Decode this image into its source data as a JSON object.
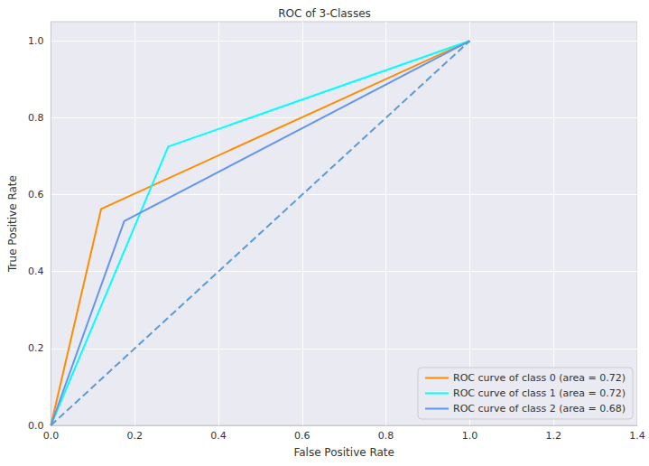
{
  "chart_data": {
    "type": "line",
    "title": "ROC of 3-Classes",
    "x_label": "False Positive Rate",
    "y_label": "True Positive Rate",
    "series": [
      {
        "name": "ROC curve of class 0 (area = 0.72)",
        "color": "#ff8c00",
        "x": [
          0,
          0.12,
          1
        ],
        "values": [
          0,
          0.563,
          1
        ],
        "line_style": "solid"
      },
      {
        "name": "ROC curve of class 1 (area = 0.72)",
        "color": "#00ffff",
        "x": [
          0,
          0.28,
          1
        ],
        "values": [
          0,
          0.725,
          1
        ],
        "line_style": "solid"
      },
      {
        "name": "ROC curve of class 2 (area = 0.68)",
        "color": "#6495ed",
        "x": [
          0,
          0.175,
          1
        ],
        "values": [
          0,
          0.531,
          1
        ],
        "line_style": "solid"
      },
      {
        "color": "#5b9bd5",
        "x": [
          0,
          1
        ],
        "values": [
          0,
          1
        ],
        "line_style": "dashed"
      }
    ],
    "xlim": [
      0,
      1.4
    ],
    "xticks": [
      {
        "value": 0,
        "label": "0.0"
      },
      0.2,
      0.4,
      0.6,
      0.8,
      {
        "value": 1,
        "label": "1.0"
      },
      1.2,
      1.4
    ],
    "ylim": [
      0,
      1.05
    ],
    "yticks": [
      {
        "value": 0,
        "label": "0.0"
      },
      0.2,
      0.4,
      0.6,
      0.8,
      {
        "value": 1,
        "label": "1.0"
      }
    ],
    "grid": true,
    "legend": "lower right"
  }
}
